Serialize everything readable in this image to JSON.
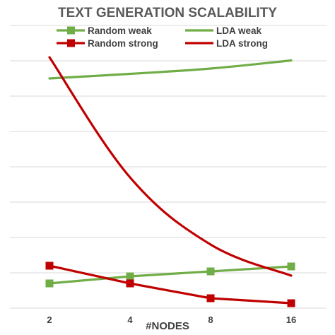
{
  "chart_data": {
    "type": "line",
    "title": "TEXT GENERATION SCALABILITY",
    "xlabel": "#NODES",
    "ylabel": "",
    "categories": [
      "2",
      "4",
      "8",
      "16"
    ],
    "ylim": [
      0,
      8
    ],
    "grid": true,
    "legend_position": "top",
    "y_ticks_labeled": false,
    "series": [
      {
        "name": "Random weak",
        "values": [
          0.7,
          0.9,
          1.04,
          1.18
        ],
        "color": "#70ad47",
        "marker": "square"
      },
      {
        "name": "LDA weak",
        "values": [
          6.5,
          6.63,
          6.78,
          7.01
        ],
        "color": "#70ad47",
        "marker": "none"
      },
      {
        "name": "Random strong",
        "values": [
          1.2,
          0.7,
          0.28,
          0.14
        ],
        "color": "#c00000",
        "marker": "square"
      },
      {
        "name": "LDA strong",
        "values": [
          7.1,
          3.7,
          1.8,
          0.92
        ],
        "color": "#c00000",
        "marker": "none"
      }
    ]
  }
}
